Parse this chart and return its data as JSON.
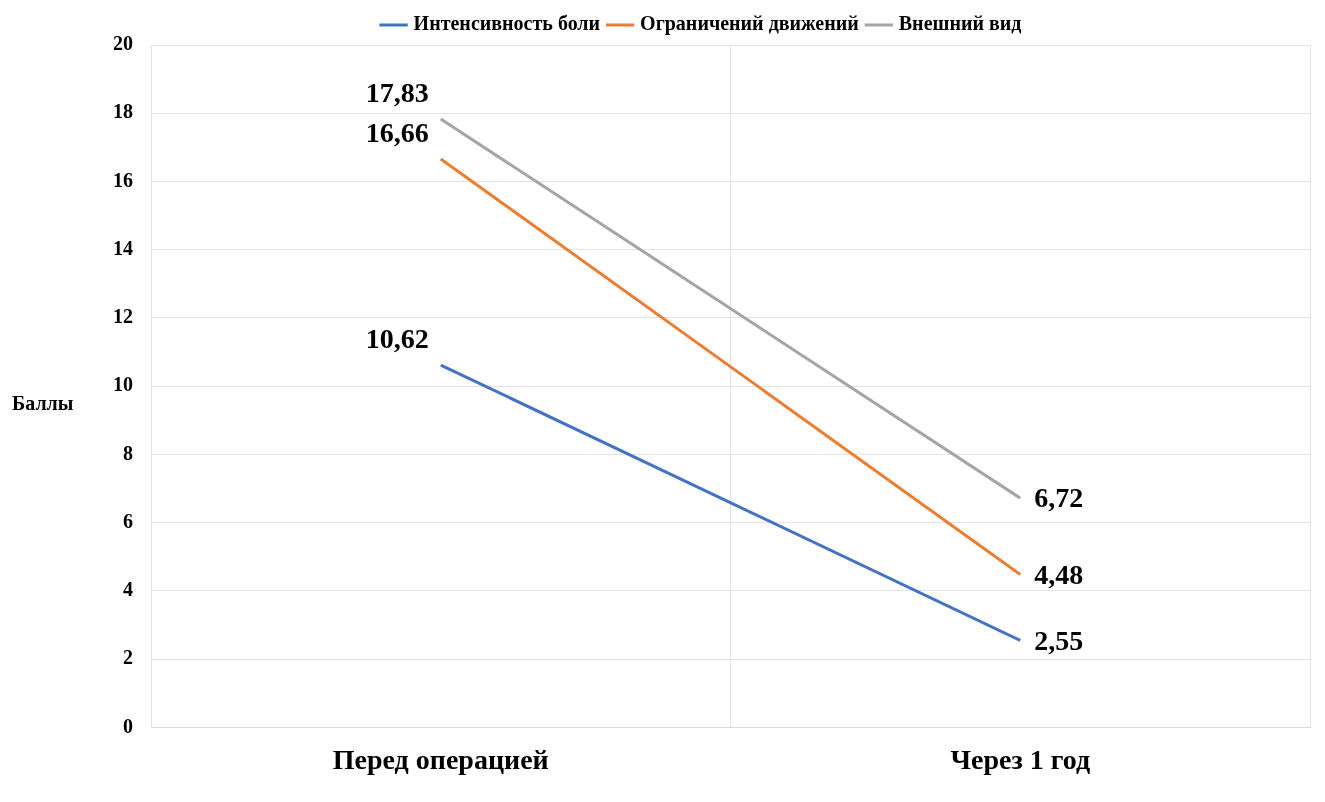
{
  "chart_data": {
    "type": "line",
    "ylabel": "Баллы",
    "categories": [
      "Перед операцией",
      "Через 1 год"
    ],
    "series": [
      {
        "name": "Интенсивность боли",
        "color": "#4472c4",
        "values": [
          10.62,
          2.55
        ],
        "value_labels": [
          "10,62",
          "2,55"
        ]
      },
      {
        "name": "Ограничений движений",
        "color": "#ed7d31",
        "values": [
          16.66,
          4.48
        ],
        "value_labels": [
          "16,66",
          "4,48"
        ]
      },
      {
        "name": "Внешний вид",
        "color": "#a5a5a5",
        "values": [
          17.83,
          6.72
        ],
        "value_labels": [
          "17,83",
          "6,72"
        ]
      }
    ],
    "ylim": [
      0,
      20
    ],
    "yticks": [
      0,
      2,
      4,
      6,
      8,
      10,
      12,
      14,
      16,
      18,
      20
    ],
    "grid": true,
    "legend": "top",
    "marker": "none",
    "line_style": "solid"
  }
}
